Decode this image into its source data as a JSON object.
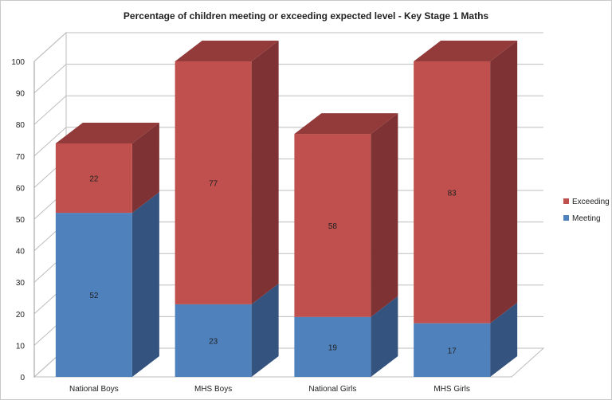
{
  "chart_data": {
    "type": "bar",
    "stacked": true,
    "three_d": true,
    "title": "Percentage of children meeting or exceeding expected level - Key Stage 1 Maths",
    "xlabel": "",
    "ylabel": "",
    "categories": [
      "National Boys",
      "MHS Boys",
      "National Girls",
      "MHS Girls"
    ],
    "series": [
      {
        "name": "Meeting",
        "values": [
          52,
          23,
          19,
          17
        ],
        "color": "#4f81bd",
        "side_color": "#34537f",
        "top_color": "#4a75a8"
      },
      {
        "name": "Exceeding",
        "values": [
          22,
          77,
          58,
          83
        ],
        "color": "#c0504d",
        "side_color": "#7f3233",
        "top_color": "#933b3a"
      }
    ],
    "ylim": [
      0,
      100
    ],
    "yticks": [
      0,
      10,
      20,
      30,
      40,
      50,
      60,
      70,
      80,
      90,
      100
    ],
    "grid": true,
    "legend": {
      "position": "right",
      "entries": [
        "Exceeding",
        "Meeting"
      ]
    },
    "data_labels": true
  }
}
